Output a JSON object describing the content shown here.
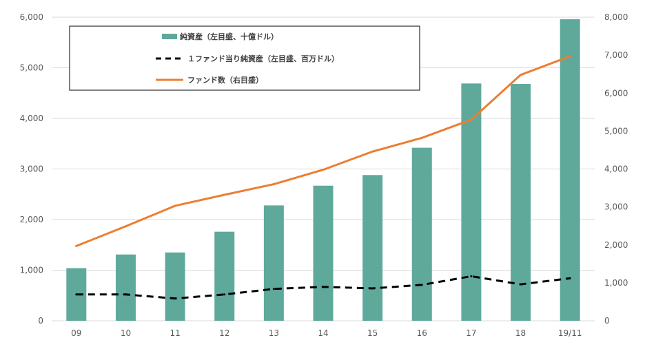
{
  "chart_data": {
    "type": "bar",
    "categories": [
      "09",
      "10",
      "11",
      "12",
      "13",
      "14",
      "15",
      "16",
      "17",
      "18",
      "19/11"
    ],
    "series": [
      {
        "name": "純資産（左目盛、十億ドル）",
        "type": "bar",
        "axis": "left",
        "color": "#5fa99b",
        "values": [
          1040,
          1310,
          1350,
          1760,
          2280,
          2670,
          2880,
          3420,
          4690,
          4680,
          5960
        ]
      },
      {
        "name": "１ファンド当り純資産（左目盛、百万ドル）",
        "type": "line",
        "style": "dashed",
        "axis": "left",
        "color": "#000000",
        "values": [
          520,
          520,
          440,
          520,
          630,
          670,
          640,
          710,
          880,
          720,
          840
        ]
      },
      {
        "name": "ファンド数（右目盛）",
        "type": "line",
        "axis": "right",
        "color": "#ed7d31",
        "values": [
          1970,
          2490,
          3030,
          3320,
          3600,
          3980,
          4460,
          4820,
          5300,
          6480,
          6970
        ]
      }
    ],
    "yleft_ticks": [
      "0",
      "1,000",
      "2,000",
      "3,000",
      "4,000",
      "5,000",
      "6,000"
    ],
    "yright_ticks": [
      "0",
      "1,000",
      "2,000",
      "3,000",
      "4,000",
      "5,000",
      "6,000",
      "7,000",
      "8,000"
    ],
    "yleft_lim": [
      0,
      6000
    ],
    "yright_lim": [
      0,
      8000
    ],
    "grid": true,
    "legend_position": "top-left"
  }
}
